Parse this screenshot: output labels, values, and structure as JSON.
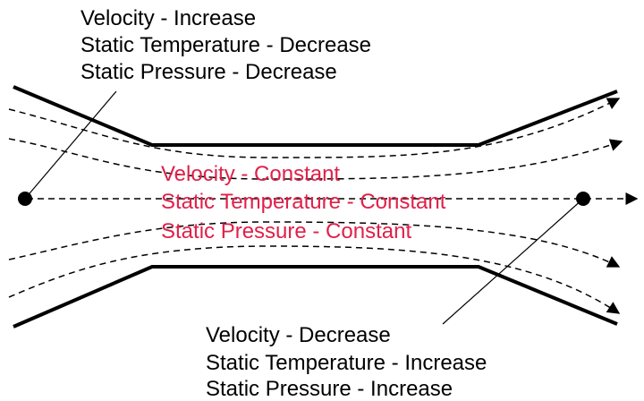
{
  "top_label": [
    "Velocity - Increase",
    "Static Temperature - Decrease",
    "Static Pressure - Decrease"
  ],
  "center_label": [
    "Velocity - Constant",
    "Static Temperature - Constant",
    "Static Pressure - Constant"
  ],
  "bottom_label": [
    "Velocity - Decrease",
    "Static Temperature - Increase",
    "Static Pressure - Increase"
  ]
}
